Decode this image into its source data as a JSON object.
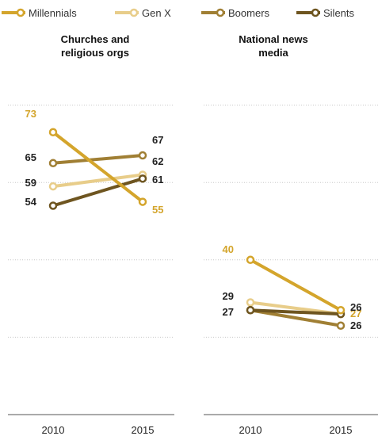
{
  "legend": {
    "items": [
      {
        "name": "Millennials",
        "color": "#d4a52c"
      },
      {
        "name": "Gen X",
        "color": "#e8cd8a"
      },
      {
        "name": "Boomers",
        "color": "#a07f34"
      },
      {
        "name": "Silents",
        "color": "#6e5520"
      }
    ]
  },
  "chart_data": [
    {
      "type": "line",
      "title": [
        "Churches and",
        "religious orgs"
      ],
      "x": [
        "2010",
        "2015"
      ],
      "series": [
        {
          "name": "Millennials",
          "values": [
            73,
            55
          ],
          "color": "#d4a52c"
        },
        {
          "name": "Gen X",
          "values": [
            59,
            62
          ],
          "color": "#e8cd8a"
        },
        {
          "name": "Boomers",
          "values": [
            65,
            67
          ],
          "color": "#a07f34"
        },
        {
          "name": "Silents",
          "values": [
            54,
            61
          ],
          "color": "#6e5520"
        }
      ],
      "ylim": [
        0,
        100
      ],
      "grid": true
    },
    {
      "type": "line",
      "title": [
        "National news",
        "media"
      ],
      "x": [
        "2010",
        "2015"
      ],
      "series": [
        {
          "name": "Millennials",
          "values": [
            40,
            27
          ],
          "color": "#d4a52c"
        },
        {
          "name": "Gen X",
          "values": [
            29,
            26
          ],
          "color": "#e8cd8a"
        },
        {
          "name": "Boomers",
          "values": [
            27,
            23
          ],
          "color": "#a07f34"
        },
        {
          "name": "Silents",
          "values": [
            27,
            26
          ],
          "color": "#6e5520"
        }
      ],
      "ylim": [
        0,
        100
      ],
      "grid": true
    }
  ]
}
